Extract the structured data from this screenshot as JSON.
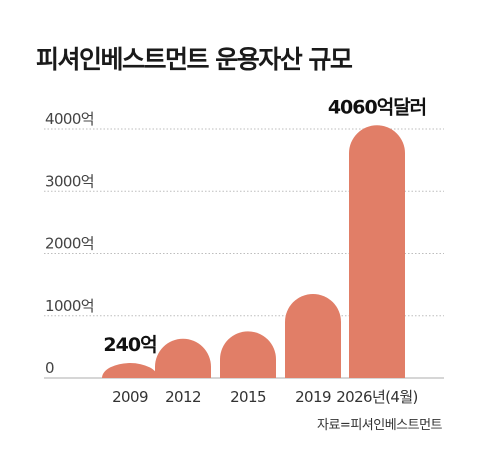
{
  "chart_data": {
    "type": "bar",
    "title": "피셔인베스트먼트 운용자산 규모",
    "categories": [
      "2009",
      "2012",
      "2015",
      "2019",
      "2026년(4월)"
    ],
    "values": [
      240,
      630,
      750,
      1350,
      4060
    ],
    "data_labels": {
      "0": "240억",
      "4": "4060억달러"
    },
    "y_ticks": [
      {
        "value": 0,
        "label": "0"
      },
      {
        "value": 1000,
        "label": "1000억"
      },
      {
        "value": 2000,
        "label": "2000억"
      },
      {
        "value": 3000,
        "label": "3000억"
      },
      {
        "value": 4000,
        "label": "4000억"
      }
    ],
    "ylim": [
      0,
      4000
    ],
    "grid": true,
    "bar_color": "#e17e67",
    "grid_color": "#bdbdbd",
    "source": "자료=피셔인베스트먼트"
  }
}
